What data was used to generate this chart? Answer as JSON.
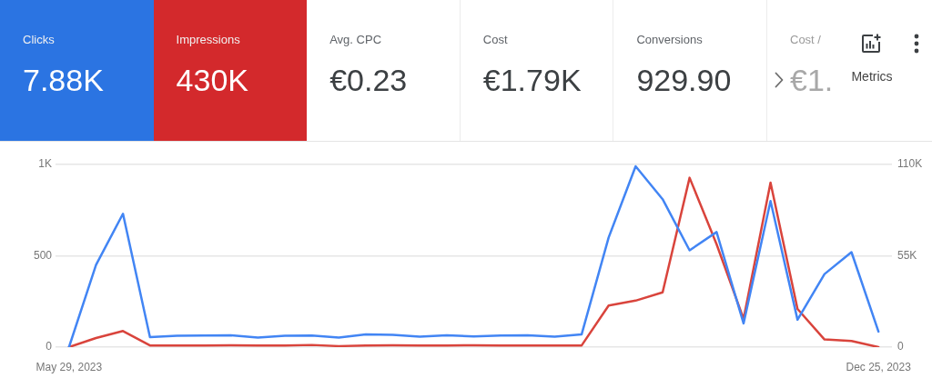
{
  "chart_data": [
    {
      "type": "other",
      "categories": [
        "Clicks",
        "Impressions",
        "Avg. CPC",
        "Cost",
        "Conversions",
        "Cost /"
      ],
      "value_labels": [
        "7.88K",
        "430K",
        "€0.23",
        "€1.79K",
        "929.90",
        "€1."
      ],
      "colors": [
        "#2b74e2",
        "#d3292c",
        "#ffffff",
        "#ffffff",
        "#ffffff",
        "#ffffff"
      ],
      "annotations": [
        "Metrics"
      ]
    },
    {
      "type": "line",
      "categories": [
        "May 29, 2023",
        null,
        null,
        null,
        null,
        null,
        null,
        null,
        null,
        null,
        null,
        null,
        null,
        null,
        null,
        null,
        null,
        null,
        null,
        null,
        null,
        null,
        null,
        null,
        null,
        null,
        null,
        null,
        null,
        null,
        "Dec 25, 2023"
      ],
      "series": [
        {
          "color": "#4285f4",
          "values": [
            0,
            450,
            730,
            55,
            62,
            63,
            65,
            52,
            62,
            63,
            52,
            70,
            67,
            57,
            65,
            58,
            63,
            65,
            57,
            70,
            600,
            990,
            810,
            530,
            630,
            130,
            800,
            150,
            400,
            520,
            85
          ]
        },
        {
          "color": "#d9443c",
          "axis": "y2",
          "values": [
            0,
            5500,
            9700,
            1000,
            900,
            1000,
            1100,
            1000,
            900,
            1300,
            600,
            1000,
            1100,
            1000,
            1000,
            1100,
            1000,
            900,
            1000,
            1000,
            25000,
            28000,
            33000,
            102000,
            62000,
            17000,
            99000,
            23000,
            4600,
            3700,
            0
          ]
        }
      ],
      "ylim": [
        0,
        1000
      ],
      "yticks": [
        0,
        500,
        {
          "value": 1000,
          "label": "1K"
        }
      ],
      "y2lim": [
        0,
        110000
      ],
      "y2ticks": [
        0,
        {
          "value": 55000,
          "label": "55K"
        },
        {
          "value": 110000,
          "label": "110K"
        }
      ],
      "grid": "y",
      "legend": false,
      "marker": "none"
    }
  ]
}
